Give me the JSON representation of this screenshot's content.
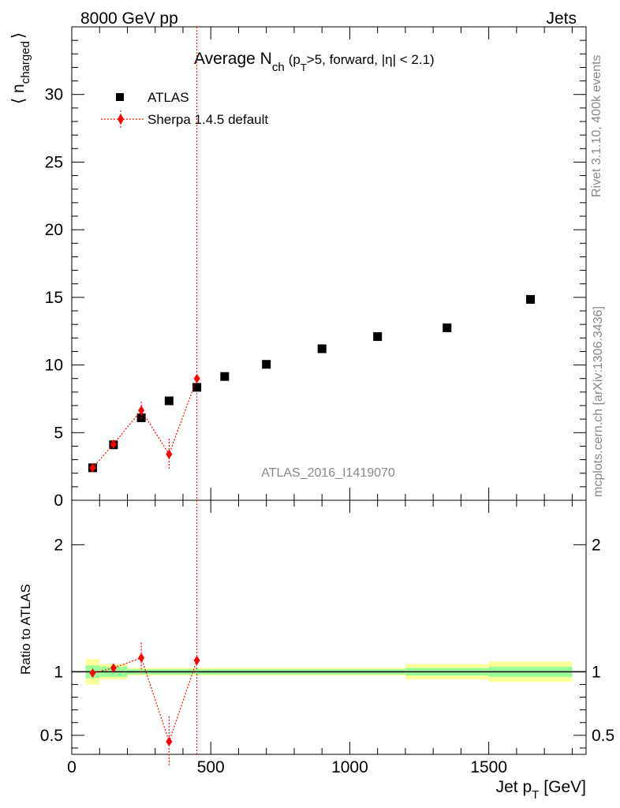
{
  "header": {
    "left": "8000 GeV pp",
    "right": "Jets"
  },
  "title": {
    "main": "Average N",
    "main_sub": "ch",
    "cond_open": "(p",
    "cond_sub": "T",
    "cond_rest": ">5, forward, |η| < 2.1)"
  },
  "side_labels": {
    "rivet": "Rivet 3.1.10,  400k events",
    "mcplots": "mcplots.cern.ch [arXiv:1306.3436]"
  },
  "watermark": "ATLAS_2016_I1419070",
  "legend": {
    "atlas": "ATLAS",
    "sherpa": "Sherpa 1.4.5 default"
  },
  "axes": {
    "top_ylabel_main": "⟨ n",
    "top_ylabel_sub": "charged",
    "top_ylabel_close": "⟩",
    "bottom_ylabel": "Ratio to ATLAS",
    "xlabel_main": "Jet p",
    "xlabel_sub": "T",
    "xlabel_unit": "[GeV]"
  },
  "colors": {
    "data": "#000000",
    "mc": "#ff0000",
    "band_outer": "#ffff99",
    "band_inner": "#99ff99"
  },
  "chart_data": [
    {
      "type": "scatter",
      "panel": "main",
      "xlim": [
        0,
        1850
      ],
      "ylim": [
        0,
        35
      ],
      "yticks": [
        0,
        5,
        10,
        15,
        20,
        25,
        30
      ],
      "ytick_labels": [
        "0",
        "5",
        "10",
        "15",
        "20",
        "25",
        "30"
      ],
      "series": [
        {
          "name": "ATLAS",
          "x": [
            75,
            150,
            250,
            350,
            450,
            550,
            700,
            900,
            1100,
            1350,
            1650
          ],
          "y": [
            2.4,
            4.1,
            6.1,
            7.35,
            8.35,
            9.15,
            10.05,
            11.2,
            12.1,
            12.75,
            14.85
          ]
        },
        {
          "name": "Sherpa 1.4.5 default",
          "x": [
            75,
            150,
            250,
            350,
            450
          ],
          "y": [
            2.4,
            4.15,
            6.65,
            3.4,
            9.0
          ],
          "yerr": [
            0.1,
            0.1,
            0.65,
            1.15,
            0.1
          ]
        }
      ]
    },
    {
      "type": "line",
      "panel": "ratio",
      "xlim": [
        0,
        1850
      ],
      "ylim": [
        0.35,
        2.35
      ],
      "yticks": [
        0.5,
        1,
        2
      ],
      "ytick_labels": [
        "0.5",
        "1",
        "2"
      ],
      "xticks": [
        0,
        500,
        1000,
        1500
      ],
      "xtick_labels": [
        "0",
        "500",
        "1000",
        "1500"
      ],
      "series": [
        {
          "name": "Sherpa 1.4.5 default",
          "x": [
            75,
            150,
            250,
            350,
            450
          ],
          "y": [
            0.99,
            1.03,
            1.11,
            0.45,
            1.09
          ],
          "yerr": [
            0.02,
            0.02,
            0.12,
            0.2,
            0.02
          ]
        }
      ],
      "bands": {
        "edges": [
          50,
          100,
          200,
          300,
          400,
          500,
          600,
          800,
          1000,
          1200,
          1500,
          1800
        ],
        "inner_halfwidth": [
          0.05,
          0.04,
          0.02,
          0.02,
          0.02,
          0.02,
          0.02,
          0.02,
          0.02,
          0.03,
          0.04
        ],
        "outer_halfwidth": [
          0.1,
          0.06,
          0.03,
          0.03,
          0.03,
          0.03,
          0.03,
          0.03,
          0.03,
          0.06,
          0.08
        ]
      }
    }
  ]
}
